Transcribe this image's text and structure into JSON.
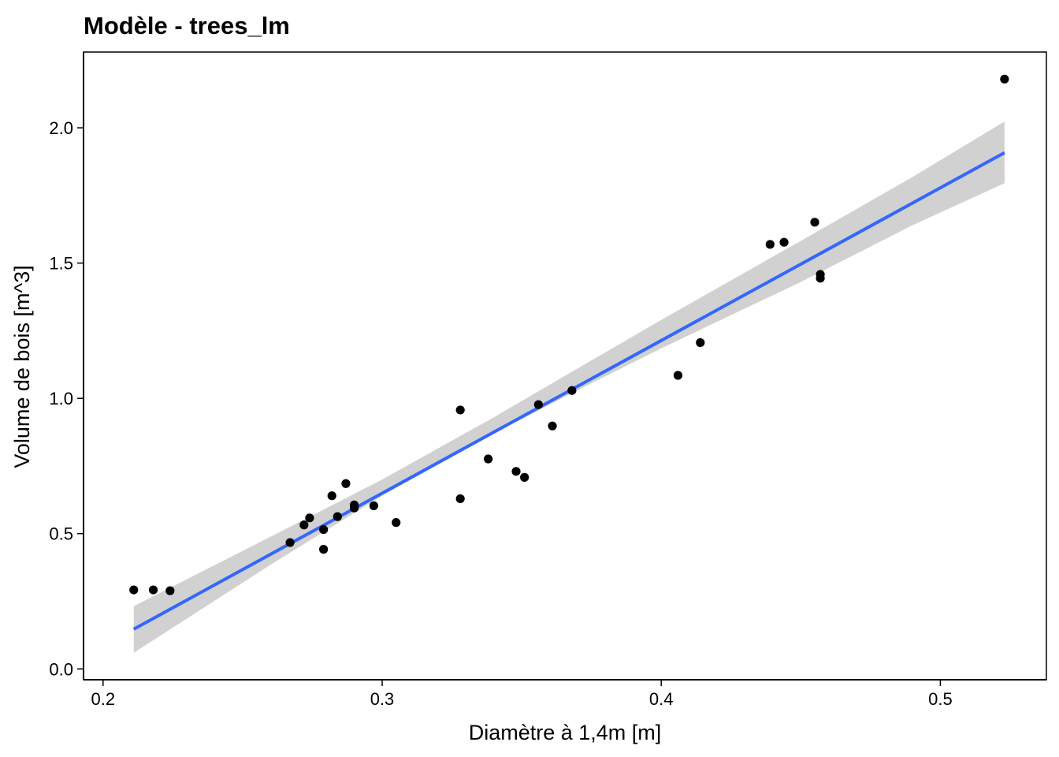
{
  "chart_data": {
    "type": "scatter",
    "title": "Modèle - trees_lm",
    "xlabel": "Diamètre à 1,4m  [m]",
    "ylabel": "Volume de bois  [m^3]",
    "xlim": [
      0.193,
      0.538
    ],
    "ylim": [
      -0.04,
      2.28
    ],
    "x_ticks": [
      0.2,
      0.3,
      0.4,
      0.5
    ],
    "x_tick_labels": [
      "0.2",
      "0.3",
      "0.4",
      "0.5"
    ],
    "y_ticks": [
      0.0,
      0.5,
      1.0,
      1.5,
      2.0
    ],
    "y_tick_labels": [
      "0.0",
      "0.5",
      "1.0",
      "1.5",
      "2.0"
    ],
    "grid": false,
    "points": [
      {
        "x": 0.211,
        "y": 0.292
      },
      {
        "x": 0.218,
        "y": 0.292
      },
      {
        "x": 0.224,
        "y": 0.289
      },
      {
        "x": 0.267,
        "y": 0.467
      },
      {
        "x": 0.272,
        "y": 0.532
      },
      {
        "x": 0.274,
        "y": 0.558
      },
      {
        "x": 0.279,
        "y": 0.515
      },
      {
        "x": 0.279,
        "y": 0.442
      },
      {
        "x": 0.282,
        "y": 0.64
      },
      {
        "x": 0.284,
        "y": 0.563
      },
      {
        "x": 0.287,
        "y": 0.685
      },
      {
        "x": 0.29,
        "y": 0.606
      },
      {
        "x": 0.29,
        "y": 0.595
      },
      {
        "x": 0.297,
        "y": 0.603
      },
      {
        "x": 0.305,
        "y": 0.541
      },
      {
        "x": 0.328,
        "y": 0.957
      },
      {
        "x": 0.328,
        "y": 0.629
      },
      {
        "x": 0.338,
        "y": 0.776
      },
      {
        "x": 0.348,
        "y": 0.73
      },
      {
        "x": 0.351,
        "y": 0.708
      },
      {
        "x": 0.356,
        "y": 0.977
      },
      {
        "x": 0.361,
        "y": 0.898
      },
      {
        "x": 0.368,
        "y": 1.029
      },
      {
        "x": 0.406,
        "y": 1.085
      },
      {
        "x": 0.414,
        "y": 1.206
      },
      {
        "x": 0.439,
        "y": 1.569
      },
      {
        "x": 0.444,
        "y": 1.577
      },
      {
        "x": 0.455,
        "y": 1.651
      },
      {
        "x": 0.457,
        "y": 1.458
      },
      {
        "x": 0.457,
        "y": 1.444
      },
      {
        "x": 0.523,
        "y": 2.18
      }
    ],
    "fit_line": {
      "color": "#3366ff",
      "x": [
        0.211,
        0.523
      ],
      "y": [
        0.147,
        1.908
      ]
    },
    "confidence_band": {
      "color": "#cccccc",
      "x": [
        0.211,
        0.26,
        0.3,
        0.34,
        0.37,
        0.4,
        0.45,
        0.49,
        0.523
      ],
      "lower": [
        0.06,
        0.385,
        0.64,
        0.87,
        1.03,
        1.185,
        1.43,
        1.64,
        1.795
      ],
      "upper": [
        0.232,
        0.488,
        0.7,
        0.93,
        1.11,
        1.29,
        1.582,
        1.818,
        2.023
      ]
    },
    "point_color": "#000000"
  }
}
